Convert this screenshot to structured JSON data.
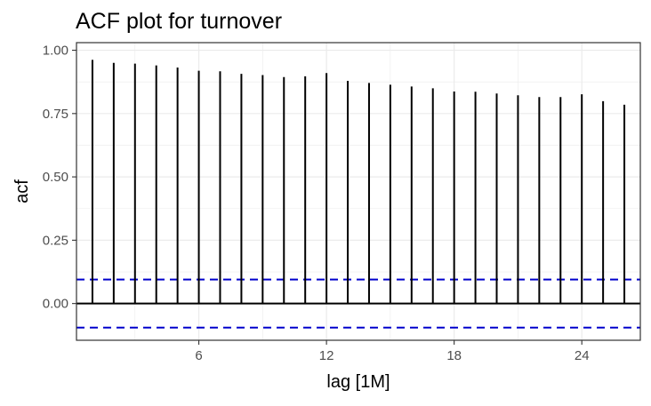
{
  "chart_data": {
    "type": "bar",
    "title": "ACF plot for turnover",
    "xlabel": "lag [1M]",
    "ylabel": "acf",
    "x": [
      1,
      2,
      3,
      4,
      5,
      6,
      7,
      8,
      9,
      10,
      11,
      12,
      13,
      14,
      15,
      16,
      17,
      18,
      19,
      20,
      21,
      22,
      23,
      24,
      25,
      26
    ],
    "values": [
      0.962,
      0.95,
      0.947,
      0.94,
      0.932,
      0.919,
      0.917,
      0.907,
      0.902,
      0.894,
      0.897,
      0.91,
      0.879,
      0.871,
      0.864,
      0.857,
      0.85,
      0.837,
      0.836,
      0.829,
      0.822,
      0.815,
      0.815,
      0.826,
      0.799,
      0.785
    ],
    "x_ticks": [
      6,
      12,
      18,
      24
    ],
    "x_tick_labels": [
      "6",
      "12",
      "18",
      "24"
    ],
    "y_ticks": [
      0,
      0.25,
      0.5,
      0.75,
      1.0
    ],
    "y_tick_labels": [
      "0.00",
      "0.25",
      "0.50",
      "0.75",
      "1.00"
    ],
    "xlim": [
      0.25,
      26.75
    ],
    "ylim": [
      -0.145,
      1.03
    ],
    "confidence_bounds": [
      0.095,
      -0.095
    ],
    "grid": true,
    "colors": {
      "stem": "#000000",
      "zero_line": "#000000",
      "bounds": "#0000cc",
      "grid": "#ebebeb",
      "panel_border": "#333333"
    }
  }
}
